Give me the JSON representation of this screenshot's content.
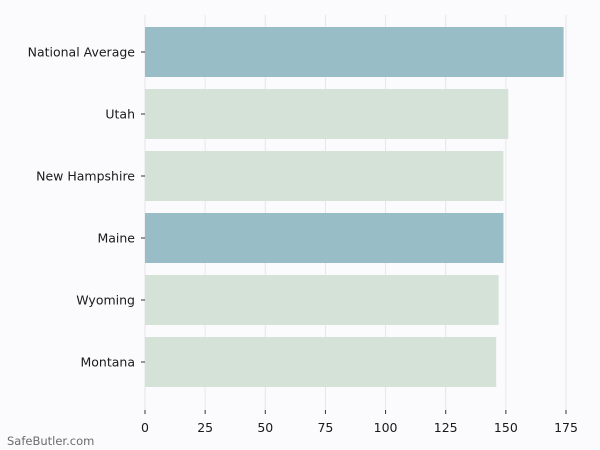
{
  "chart_data": {
    "type": "bar",
    "orientation": "horizontal",
    "categories": [
      "National Average",
      "Utah",
      "New Hampshire",
      "Maine",
      "Wyoming",
      "Montana"
    ],
    "values": [
      174,
      151,
      149,
      149,
      147,
      146
    ],
    "bar_colors": [
      "#98bdc6",
      "#d4e2d8",
      "#d4e2d8",
      "#98bdc6",
      "#d4e2d8",
      "#d4e2d8"
    ],
    "xlim": [
      0,
      175
    ],
    "xticks": [
      0,
      25,
      50,
      75,
      100,
      125,
      150,
      175
    ],
    "grid": "vertical",
    "title": "",
    "xlabel": "",
    "ylabel": ""
  },
  "watermark": "SafeButler.com",
  "colors": {
    "background": "#fbfbfd",
    "grid": "#e6e6e6",
    "text": "#1a1a1a",
    "highlight_bar": "#98bdc6",
    "default_bar": "#d4e2d8"
  }
}
